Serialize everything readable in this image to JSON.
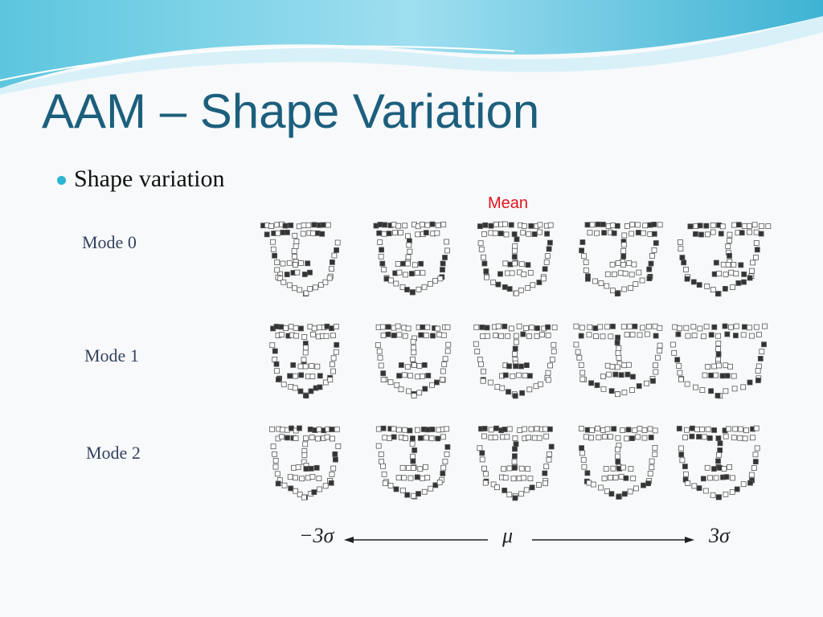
{
  "title": "AAM – Shape Variation",
  "bullets": [
    "Shape variation"
  ],
  "figure": {
    "mean_label": "Mean",
    "rows": [
      "Mode 0",
      "Mode 1",
      "Mode 2"
    ],
    "axis": {
      "left": "−3σ",
      "center": "μ",
      "right": "3σ"
    }
  }
}
